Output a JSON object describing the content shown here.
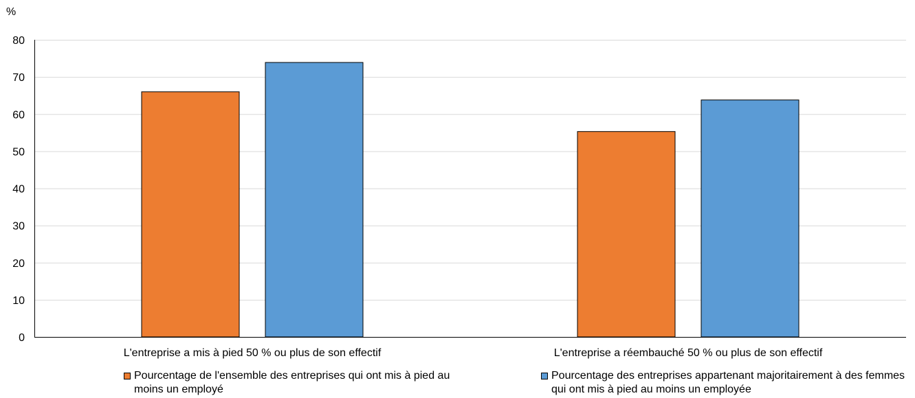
{
  "chart_data": {
    "type": "bar",
    "y_unit": "%",
    "ylim": [
      0,
      80
    ],
    "yticks": [
      0,
      10,
      20,
      30,
      40,
      50,
      60,
      70,
      80
    ],
    "grid": true,
    "categories": [
      "L'entreprise a mis à pied 50 % ou plus de son effectif",
      "L'entreprise a réembauché 50 % ou plus de son effectif"
    ],
    "series": [
      {
        "name": "Pourcentage de l'ensemble des entreprises qui ont mis à pied au moins un employé",
        "color": "#ed7d31",
        "values": [
          66,
          55.3
        ]
      },
      {
        "name": "Pourcentage des entreprises appartenant majoritairement à des femmes qui ont mis à pied au moins un employée",
        "color": "#5b9bd5",
        "values": [
          73.9,
          63.8
        ]
      }
    ],
    "legend_position": "bottom"
  }
}
